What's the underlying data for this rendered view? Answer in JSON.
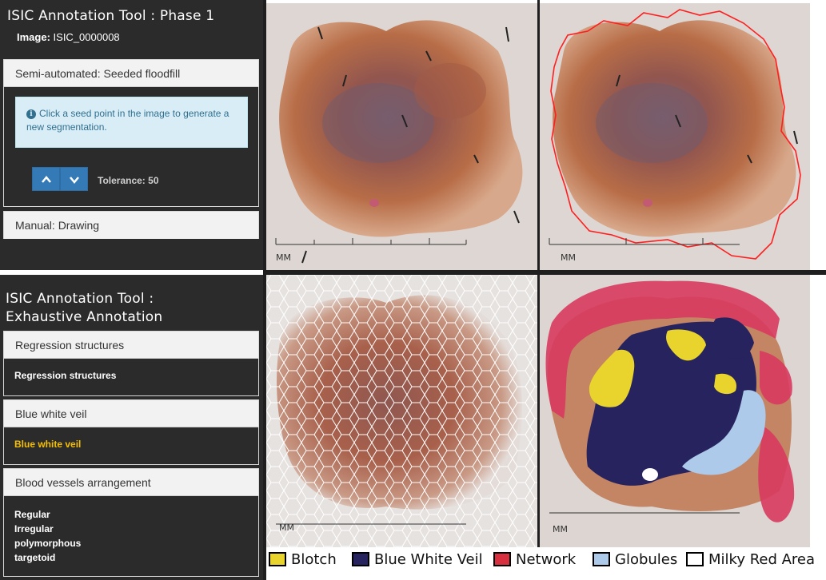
{
  "top_tool": {
    "title": "ISIC Annotation Tool : Phase 1",
    "image_label": "Image:",
    "image_id": "ISIC_0000008",
    "panel_semi": "Semi-automated: Seeded floodfill",
    "info_text": "Click a seed point in the image to generate a new segmentation.",
    "up_label": "^",
    "down_label": "v",
    "tolerance_label": "Tolerance:",
    "tolerance_value": "50",
    "panel_manual": "Manual: Drawing"
  },
  "bottom_tool": {
    "title_line1": "ISIC Annotation Tool :",
    "title_line2": "Exhaustive Annotation",
    "sections": [
      {
        "header": "Regression structures",
        "items": [
          "Regression structures"
        ]
      },
      {
        "header": "Blue white veil",
        "items": [
          "Blue white veil"
        ]
      },
      {
        "header": "Blood vessels arrangement",
        "items": [
          "Regular",
          "Irregular",
          "polymorphous",
          "targetoid"
        ]
      }
    ],
    "highlight_color": "#f5c000"
  },
  "images": {
    "scale_label": "MM",
    "outline_color": "#ff1f1f"
  },
  "legend": [
    {
      "label": "Blotch",
      "color": "#e8d42c"
    },
    {
      "label": "Blue White Veil",
      "color": "#27235e"
    },
    {
      "label": "Network",
      "color": "#d8303f"
    },
    {
      "label": "Globules",
      "color": "#aecaea"
    },
    {
      "label": "Milky Red Area",
      "color": "#ffffff"
    }
  ]
}
